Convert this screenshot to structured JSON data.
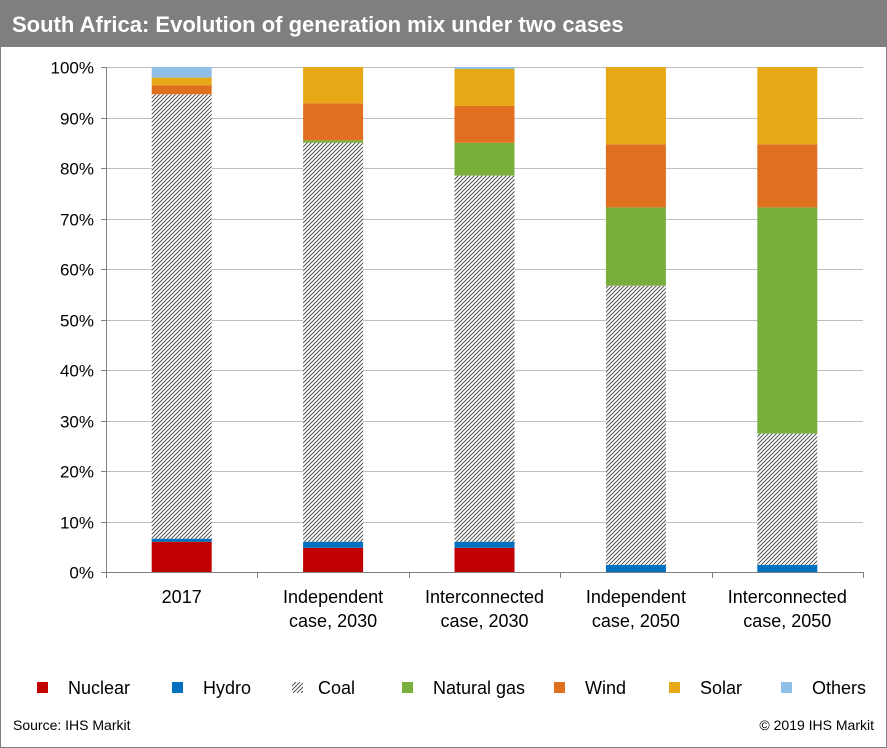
{
  "header": {
    "title": "South Africa: Evolution of generation mix under two cases"
  },
  "footer": {
    "source": "Source: IHS Markit",
    "copyright": "© 2019 IHS Markit"
  },
  "chart_data": {
    "type": "bar",
    "stacked": true,
    "title": "South Africa: Evolution of generation mix under two cases",
    "xlabel": "",
    "ylabel": "",
    "ylim": [
      0,
      100
    ],
    "y_ticks": [
      "0%",
      "10%",
      "20%",
      "30%",
      "40%",
      "50%",
      "60%",
      "70%",
      "80%",
      "90%",
      "100%"
    ],
    "categories": [
      [
        "2017"
      ],
      [
        "Independent",
        "case, 2030"
      ],
      [
        "Interconnected",
        "case, 2030"
      ],
      [
        "Independent",
        "case, 2050"
      ],
      [
        "Interconnected",
        "case, 2050"
      ]
    ],
    "legend_position": "bottom",
    "grid": "horizontal",
    "series": [
      {
        "name": "Nuclear",
        "color": "#c00000",
        "pattern": "solid",
        "values": [
          6.0,
          4.8,
          4.8,
          0.0,
          0.0
        ]
      },
      {
        "name": "Hydro",
        "color": "#0070c0",
        "pattern": "solid",
        "values": [
          0.6,
          1.2,
          1.2,
          1.4,
          1.4
        ]
      },
      {
        "name": "Coal",
        "color": "#404040",
        "pattern": "hatch",
        "values": [
          88.0,
          79.0,
          72.5,
          55.3,
          26.0
        ]
      },
      {
        "name": "Natural gas",
        "color": "#7aaf3c",
        "pattern": "solid",
        "values": [
          0.0,
          0.5,
          6.5,
          15.5,
          44.8
        ]
      },
      {
        "name": "Wind",
        "color": "#e07020",
        "pattern": "solid",
        "values": [
          1.8,
          7.3,
          7.3,
          12.5,
          12.5
        ]
      },
      {
        "name": "Solar",
        "color": "#e6a817",
        "pattern": "solid",
        "values": [
          1.5,
          7.2,
          7.3,
          15.3,
          15.3
        ]
      },
      {
        "name": "Others",
        "color": "#8fbfe6",
        "pattern": "solid",
        "values": [
          2.1,
          0.0,
          0.4,
          0.0,
          0.0
        ]
      }
    ]
  }
}
